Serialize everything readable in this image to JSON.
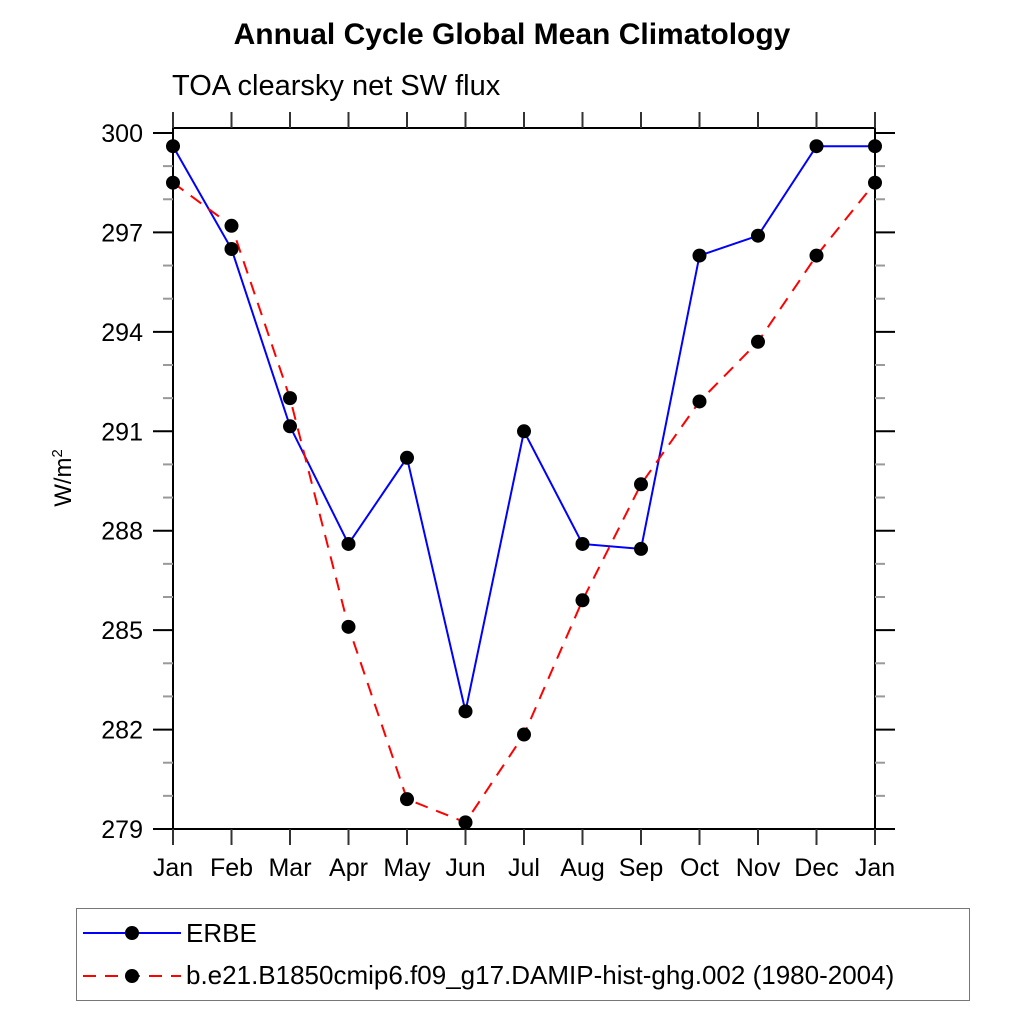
{
  "chart_data": {
    "type": "line",
    "title": "Annual Cycle Global Mean Climatology",
    "subtitle": "TOA clearsky net SW flux",
    "ylabel": "W/m2",
    "ylabel_base": "W/m",
    "ylabel_sup": "2",
    "xlabel": "",
    "categories": [
      "Jan",
      "Feb",
      "Mar",
      "Apr",
      "May",
      "Jun",
      "Jul",
      "Aug",
      "Sep",
      "Oct",
      "Nov",
      "Dec",
      "Jan"
    ],
    "series": [
      {
        "name": "ERBE",
        "color": "#0000ff",
        "line_style": "solid",
        "marker": "filled-circle",
        "marker_color": "#000000",
        "values": [
          299.6,
          296.5,
          291.15,
          287.6,
          290.2,
          282.55,
          291.0,
          287.6,
          287.45,
          296.3,
          296.9,
          299.6,
          299.6
        ]
      },
      {
        "name": "b.e21.B1850cmip6.f09_g17.DAMIP-hist-ghg.002 (1980-2004)",
        "color": "#ff0000",
        "line_style": "dashed",
        "marker": "filled-circle",
        "marker_color": "#000000",
        "values": [
          298.5,
          297.2,
          292.0,
          285.1,
          279.9,
          279.2,
          281.85,
          285.9,
          289.4,
          291.9,
          293.7,
          296.3,
          298.5
        ]
      }
    ],
    "yticks_major": [
      279,
      282,
      285,
      288,
      291,
      294,
      297,
      300
    ],
    "ytick_minor_step": 1,
    "ylim": [
      279,
      300.15
    ],
    "grid": false,
    "legend_position": "bottom-box"
  }
}
